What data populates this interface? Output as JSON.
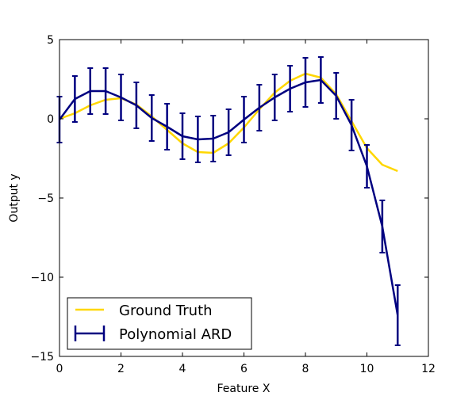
{
  "chart_data": {
    "type": "line",
    "title": "",
    "xlabel": "Feature X",
    "ylabel": "Output y",
    "xlim": [
      0,
      12
    ],
    "ylim": [
      -15,
      5
    ],
    "xticks": [
      "0",
      "2",
      "4",
      "6",
      "8",
      "10",
      "12"
    ],
    "yticks": [
      "5",
      "0",
      "−5",
      "−10",
      "−15"
    ],
    "grid": false,
    "legend_position": "lower-left",
    "series": [
      {
        "name": "Ground Truth",
        "color": "#ffd700",
        "style": "line",
        "x": [
          0.0,
          0.5,
          1.0,
          1.5,
          2.0,
          2.5,
          3.0,
          3.5,
          4.0,
          4.5,
          5.0,
          5.5,
          6.0,
          6.5,
          7.0,
          7.5,
          8.0,
          8.5,
          9.0,
          9.5,
          10.0,
          10.5,
          11.0
        ],
        "y": [
          0.0,
          0.35,
          0.85,
          1.2,
          1.3,
          0.9,
          0.15,
          -0.7,
          -1.55,
          -2.1,
          -2.15,
          -1.55,
          -0.55,
          0.6,
          1.65,
          2.4,
          2.85,
          2.6,
          1.55,
          -0.15,
          -1.85,
          -2.9,
          -3.3
        ]
      },
      {
        "name": "Polynomial ARD",
        "color": "#000080",
        "style": "errorbar",
        "x": [
          0.0,
          0.5,
          1.0,
          1.5,
          2.0,
          2.5,
          3.0,
          3.5,
          4.0,
          4.5,
          5.0,
          5.5,
          6.0,
          6.5,
          7.0,
          7.5,
          8.0,
          8.5,
          9.0,
          9.5,
          10.0,
          10.5,
          11.0
        ],
        "y": [
          -0.05,
          1.25,
          1.75,
          1.75,
          1.35,
          0.85,
          0.05,
          -0.5,
          -1.1,
          -1.3,
          -1.25,
          -0.85,
          -0.05,
          0.7,
          1.35,
          1.9,
          2.3,
          2.45,
          1.45,
          -0.4,
          -3.0,
          -6.8,
          -12.4
        ],
        "err": [
          1.45,
          1.45,
          1.45,
          1.45,
          1.45,
          1.45,
          1.45,
          1.45,
          1.45,
          1.45,
          1.45,
          1.45,
          1.45,
          1.45,
          1.45,
          1.45,
          1.55,
          1.45,
          1.45,
          1.6,
          1.35,
          1.65,
          1.9
        ]
      }
    ]
  }
}
